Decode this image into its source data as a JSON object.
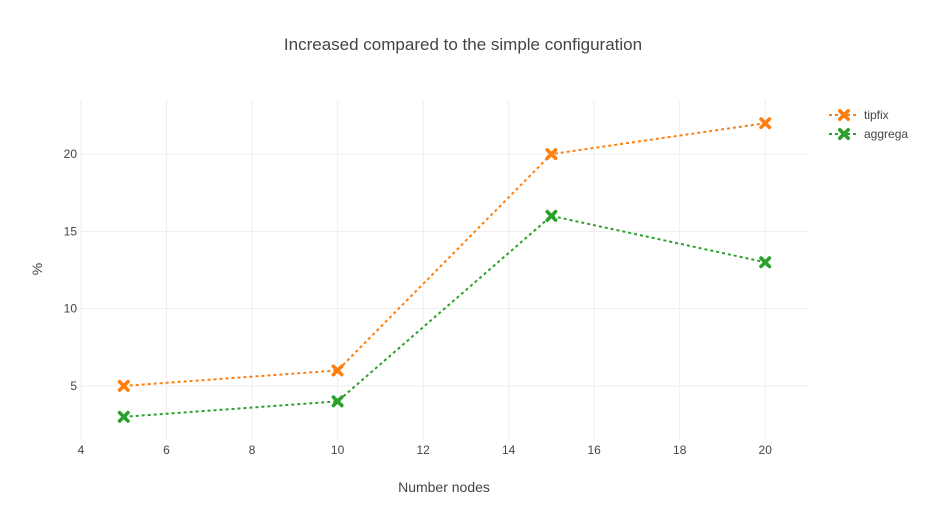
{
  "chart_data": {
    "type": "line",
    "title": "Increased compared to the simple configuration",
    "xlabel": "Number nodes",
    "ylabel": "%",
    "xlim": [
      4,
      21
    ],
    "ylim": [
      1.5,
      23.5
    ],
    "x_ticks": [
      4,
      6,
      8,
      10,
      12,
      14,
      16,
      18,
      20
    ],
    "y_ticks": [
      5,
      10,
      15,
      20
    ],
    "grid": true,
    "legend_position": "top-right",
    "series": [
      {
        "name": "tipfix",
        "color": "#ff7f0e",
        "marker": "x",
        "line": "dotted",
        "x": [
          5,
          10,
          15,
          20
        ],
        "y": [
          5,
          6,
          20,
          22
        ]
      },
      {
        "name": "aggrega",
        "color": "#2ca02c",
        "marker": "x",
        "line": "dotted",
        "x": [
          5,
          10,
          15,
          20
        ],
        "y": [
          3,
          4,
          16,
          13
        ]
      }
    ]
  }
}
